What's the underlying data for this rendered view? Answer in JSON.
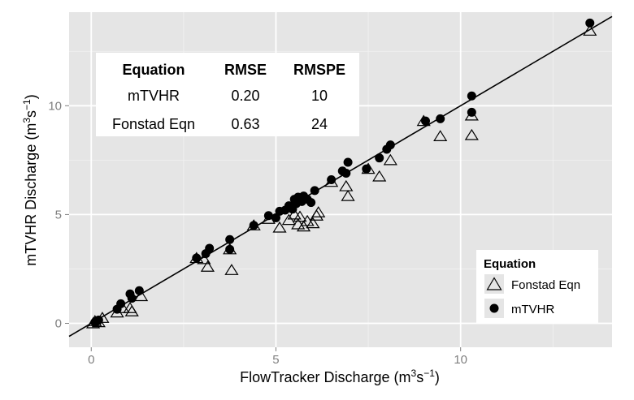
{
  "chart_data": {
    "type": "scatter",
    "title": "",
    "xlabel": {
      "main": "FlowTracker Discharge (m",
      "sup1": "3",
      "mid": "s",
      "sup2": "−1",
      "end": ")"
    },
    "ylabel": {
      "main": "mTVHR Discharge (m",
      "sup1": "3",
      "mid": "s",
      "sup2": "−1",
      "end": ")"
    },
    "xlim": [
      -0.6,
      14.1
    ],
    "ylim": [
      -1.1,
      14.3
    ],
    "x_ticks": [
      0,
      5,
      10
    ],
    "y_ticks": [
      0,
      5,
      10
    ],
    "grid": true,
    "legend": {
      "title": "Equation",
      "position": "bottom-right",
      "items": [
        {
          "label": "Fonstad Eqn",
          "marker": "triangle-open"
        },
        {
          "label": "mTVHR",
          "marker": "circle-filled"
        }
      ]
    },
    "reference_line": {
      "x": [
        -0.6,
        14.1
      ],
      "y": [
        -0.6,
        14.1
      ]
    },
    "stats_table": {
      "headers": [
        "Equation",
        "RMSE",
        "RMSPE"
      ],
      "rows": [
        [
          "mTVHR",
          "0.20",
          "10"
        ],
        [
          "Fonstad Eqn",
          "0.63",
          "24"
        ]
      ]
    },
    "series": [
      {
        "name": "mTVHR",
        "marker": "circle-filled",
        "x": [
          0.1,
          0.15,
          0.2,
          0.7,
          0.8,
          1.05,
          1.1,
          1.3,
          2.85,
          3.1,
          3.2,
          3.75,
          3.75,
          4.4,
          4.8,
          5.0,
          5.1,
          5.25,
          5.35,
          5.45,
          5.5,
          5.55,
          5.6,
          5.7,
          5.75,
          5.85,
          5.95,
          6.05,
          6.5,
          6.8,
          6.9,
          6.95,
          7.45,
          7.8,
          8.0,
          8.1,
          9.05,
          9.45,
          10.3,
          10.3,
          13.5
        ],
        "y": [
          0.05,
          0.1,
          0.15,
          0.65,
          0.9,
          1.35,
          1.15,
          1.5,
          3.0,
          3.2,
          3.45,
          3.85,
          3.4,
          4.5,
          4.95,
          4.85,
          5.15,
          5.2,
          5.4,
          5.25,
          5.7,
          5.5,
          5.8,
          5.6,
          5.85,
          5.7,
          5.55,
          6.1,
          6.6,
          7.0,
          6.9,
          7.4,
          7.1,
          7.6,
          8.0,
          8.2,
          9.3,
          9.4,
          10.45,
          9.7,
          13.8
        ]
      },
      {
        "name": "Fonstad Eqn",
        "marker": "triangle-open",
        "x": [
          0.05,
          0.1,
          0.2,
          0.3,
          0.7,
          0.85,
          1.05,
          1.1,
          1.35,
          2.85,
          3.05,
          3.15,
          3.75,
          3.8,
          4.4,
          4.8,
          5.1,
          5.35,
          5.5,
          5.6,
          5.65,
          5.75,
          5.85,
          6.0,
          6.1,
          6.15,
          6.5,
          6.9,
          6.95,
          7.5,
          7.8,
          8.1,
          9.0,
          9.45,
          10.3,
          10.3,
          13.5
        ],
        "y": [
          0.0,
          0.1,
          0.05,
          0.25,
          0.5,
          0.7,
          0.7,
          0.55,
          1.25,
          3.0,
          2.95,
          2.6,
          3.4,
          2.45,
          4.5,
          4.8,
          4.4,
          4.75,
          5.0,
          4.55,
          4.9,
          4.45,
          4.7,
          4.6,
          4.95,
          5.1,
          6.5,
          6.3,
          5.85,
          7.1,
          6.75,
          7.5,
          9.3,
          8.6,
          9.55,
          8.65,
          13.45
        ]
      }
    ]
  }
}
